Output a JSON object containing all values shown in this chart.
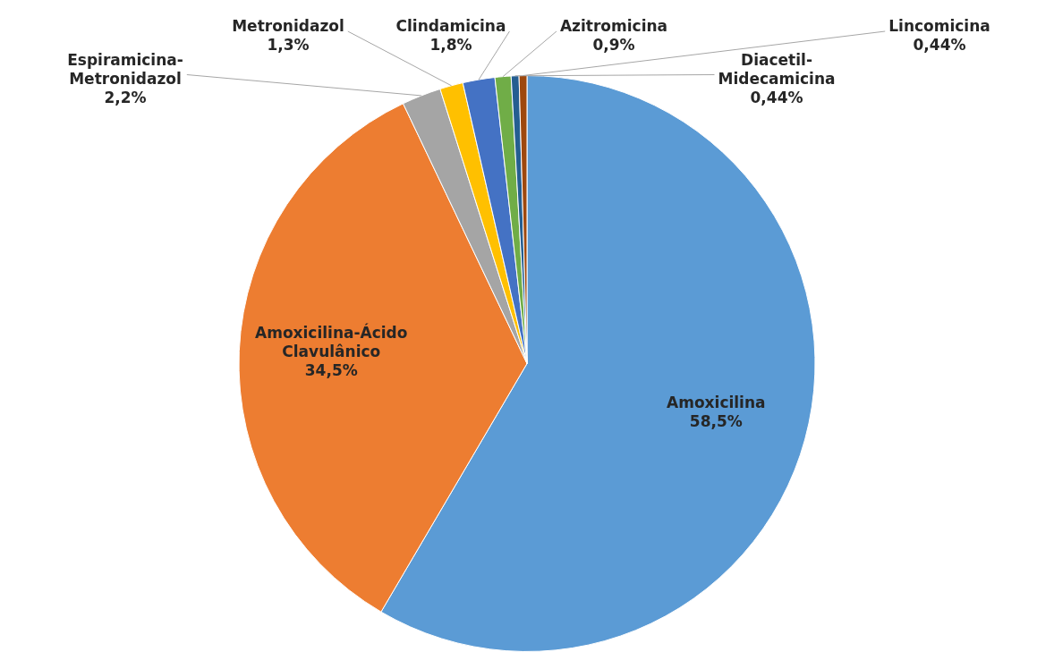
{
  "chart_data": {
    "type": "pie",
    "categories": [
      "Amoxicilina",
      "Amoxicilina-Ácido Clavulânico",
      "Espiramicina-Metronidazol",
      "Metronidazol",
      "Clindamicina",
      "Azitromicina",
      "Diacetil-Midecamicina",
      "Lincomicina"
    ],
    "values": [
      58.5,
      34.5,
      2.2,
      1.3,
      1.8,
      0.9,
      0.44,
      0.44
    ],
    "colors": [
      "#5b9bd5",
      "#ed7d31",
      "#a5a5a5",
      "#ffc000",
      "#4472c4",
      "#70ad47",
      "#255e91",
      "#9e480e"
    ],
    "value_labels": [
      "58,5%",
      "34,5%",
      "2,2%",
      "1,3%",
      "1,8%",
      "0,9%",
      "0,44%",
      "0,44%"
    ],
    "legend": false
  }
}
